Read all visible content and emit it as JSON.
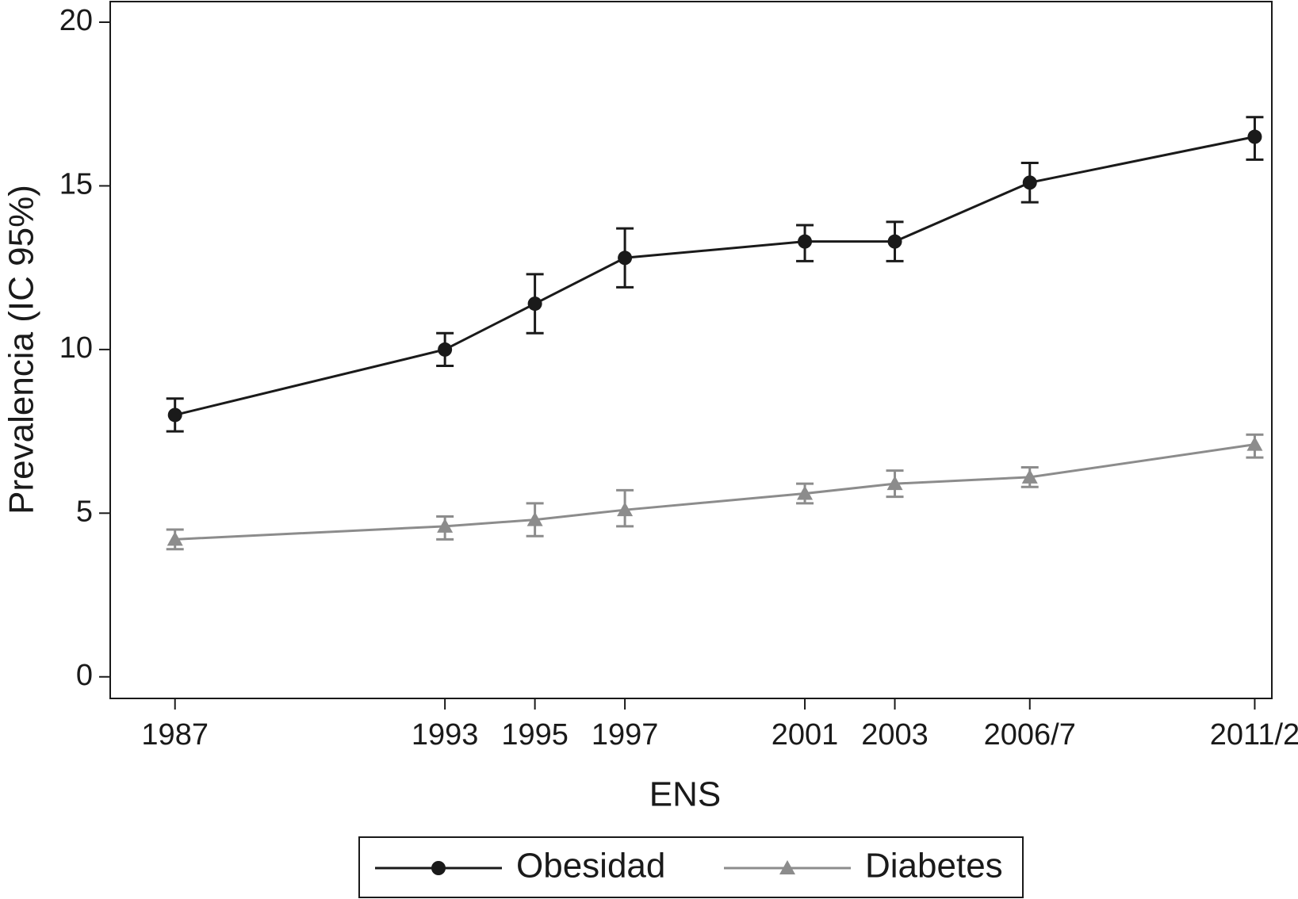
{
  "chart_data": {
    "type": "line",
    "xlabel": "ENS",
    "ylabel": "Prevalencia (IC 95%)",
    "x": [
      1987,
      1993,
      1995,
      1997,
      2001,
      2003,
      2006,
      2011
    ],
    "xlim": [
      1985.56,
      2011.38
    ],
    "xticks": [
      1987,
      1993,
      1995,
      1997,
      2001,
      2003,
      {
        "value": 2006,
        "label": "2006/7"
      },
      {
        "value": 2011,
        "label": "2011/2"
      }
    ],
    "ylim": [
      -0.66,
      20.63
    ],
    "yticks": [
      0,
      5,
      10,
      15,
      20
    ],
    "grid": false,
    "legend": "bottom",
    "series": [
      {
        "name": "Obesidad",
        "color": "#1a1a1a",
        "marker": "circle",
        "values": [
          8.0,
          10.0,
          11.4,
          12.8,
          13.3,
          13.3,
          15.1,
          16.5
        ],
        "lower": [
          7.5,
          9.5,
          10.5,
          11.9,
          12.7,
          12.7,
          14.5,
          15.8
        ],
        "upper": [
          8.5,
          10.5,
          12.3,
          13.7,
          13.8,
          13.9,
          15.7,
          17.1
        ]
      },
      {
        "name": "Diabetes",
        "color": "#8c8c8c",
        "marker": "triangle",
        "values": [
          4.2,
          4.6,
          4.8,
          5.1,
          5.6,
          5.9,
          6.1,
          7.1
        ],
        "lower": [
          3.9,
          4.2,
          4.3,
          4.6,
          5.3,
          5.5,
          5.8,
          6.7
        ],
        "upper": [
          4.5,
          4.9,
          5.3,
          5.7,
          5.9,
          6.3,
          6.4,
          7.4
        ]
      }
    ]
  }
}
